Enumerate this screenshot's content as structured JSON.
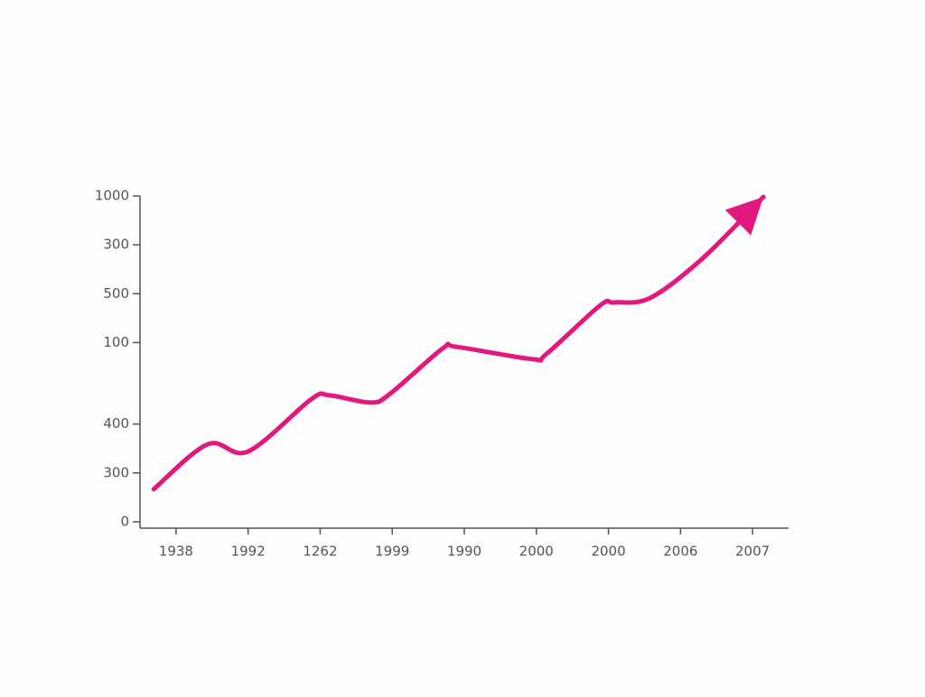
{
  "chart_data": {
    "type": "line",
    "x": [
      -0.31,
      0.44,
      1.0,
      1.88,
      2.13,
      2.7,
      2.97,
      3.7,
      3.89,
      4.95,
      5.14,
      5.89,
      6.08,
      6.58,
      7.31,
      8.15
    ],
    "series": [
      {
        "color": "#e2187f",
        "values": [
          100,
          238,
          216,
          377,
          388,
          366,
          393,
          532,
          537,
          499,
          515,
          665,
          673,
          687,
          809,
          997
        ]
      }
    ],
    "xlim": [
      -0.5,
      8.5
    ],
    "xticks": [
      {
        "value": 0,
        "label": "1938"
      },
      {
        "value": 1,
        "label": "1992"
      },
      {
        "value": 2,
        "label": "1262"
      },
      {
        "value": 3,
        "label": "1999"
      },
      {
        "value": 4,
        "label": "1990"
      },
      {
        "value": 5,
        "label": "2000"
      },
      {
        "value": 6,
        "label": "2000"
      },
      {
        "value": 7,
        "label": "2006"
      },
      {
        "value": 8,
        "label": "2007"
      }
    ],
    "ylim": [
      0,
      1000
    ],
    "yticks": [
      0,
      {
        "value": 150,
        "label": "300"
      },
      {
        "value": 300,
        "label": "400"
      },
      {
        "value": 550,
        "label": "100"
      },
      {
        "value": 700,
        "label": "500"
      },
      {
        "value": 850,
        "label": "300"
      },
      1000
    ]
  }
}
